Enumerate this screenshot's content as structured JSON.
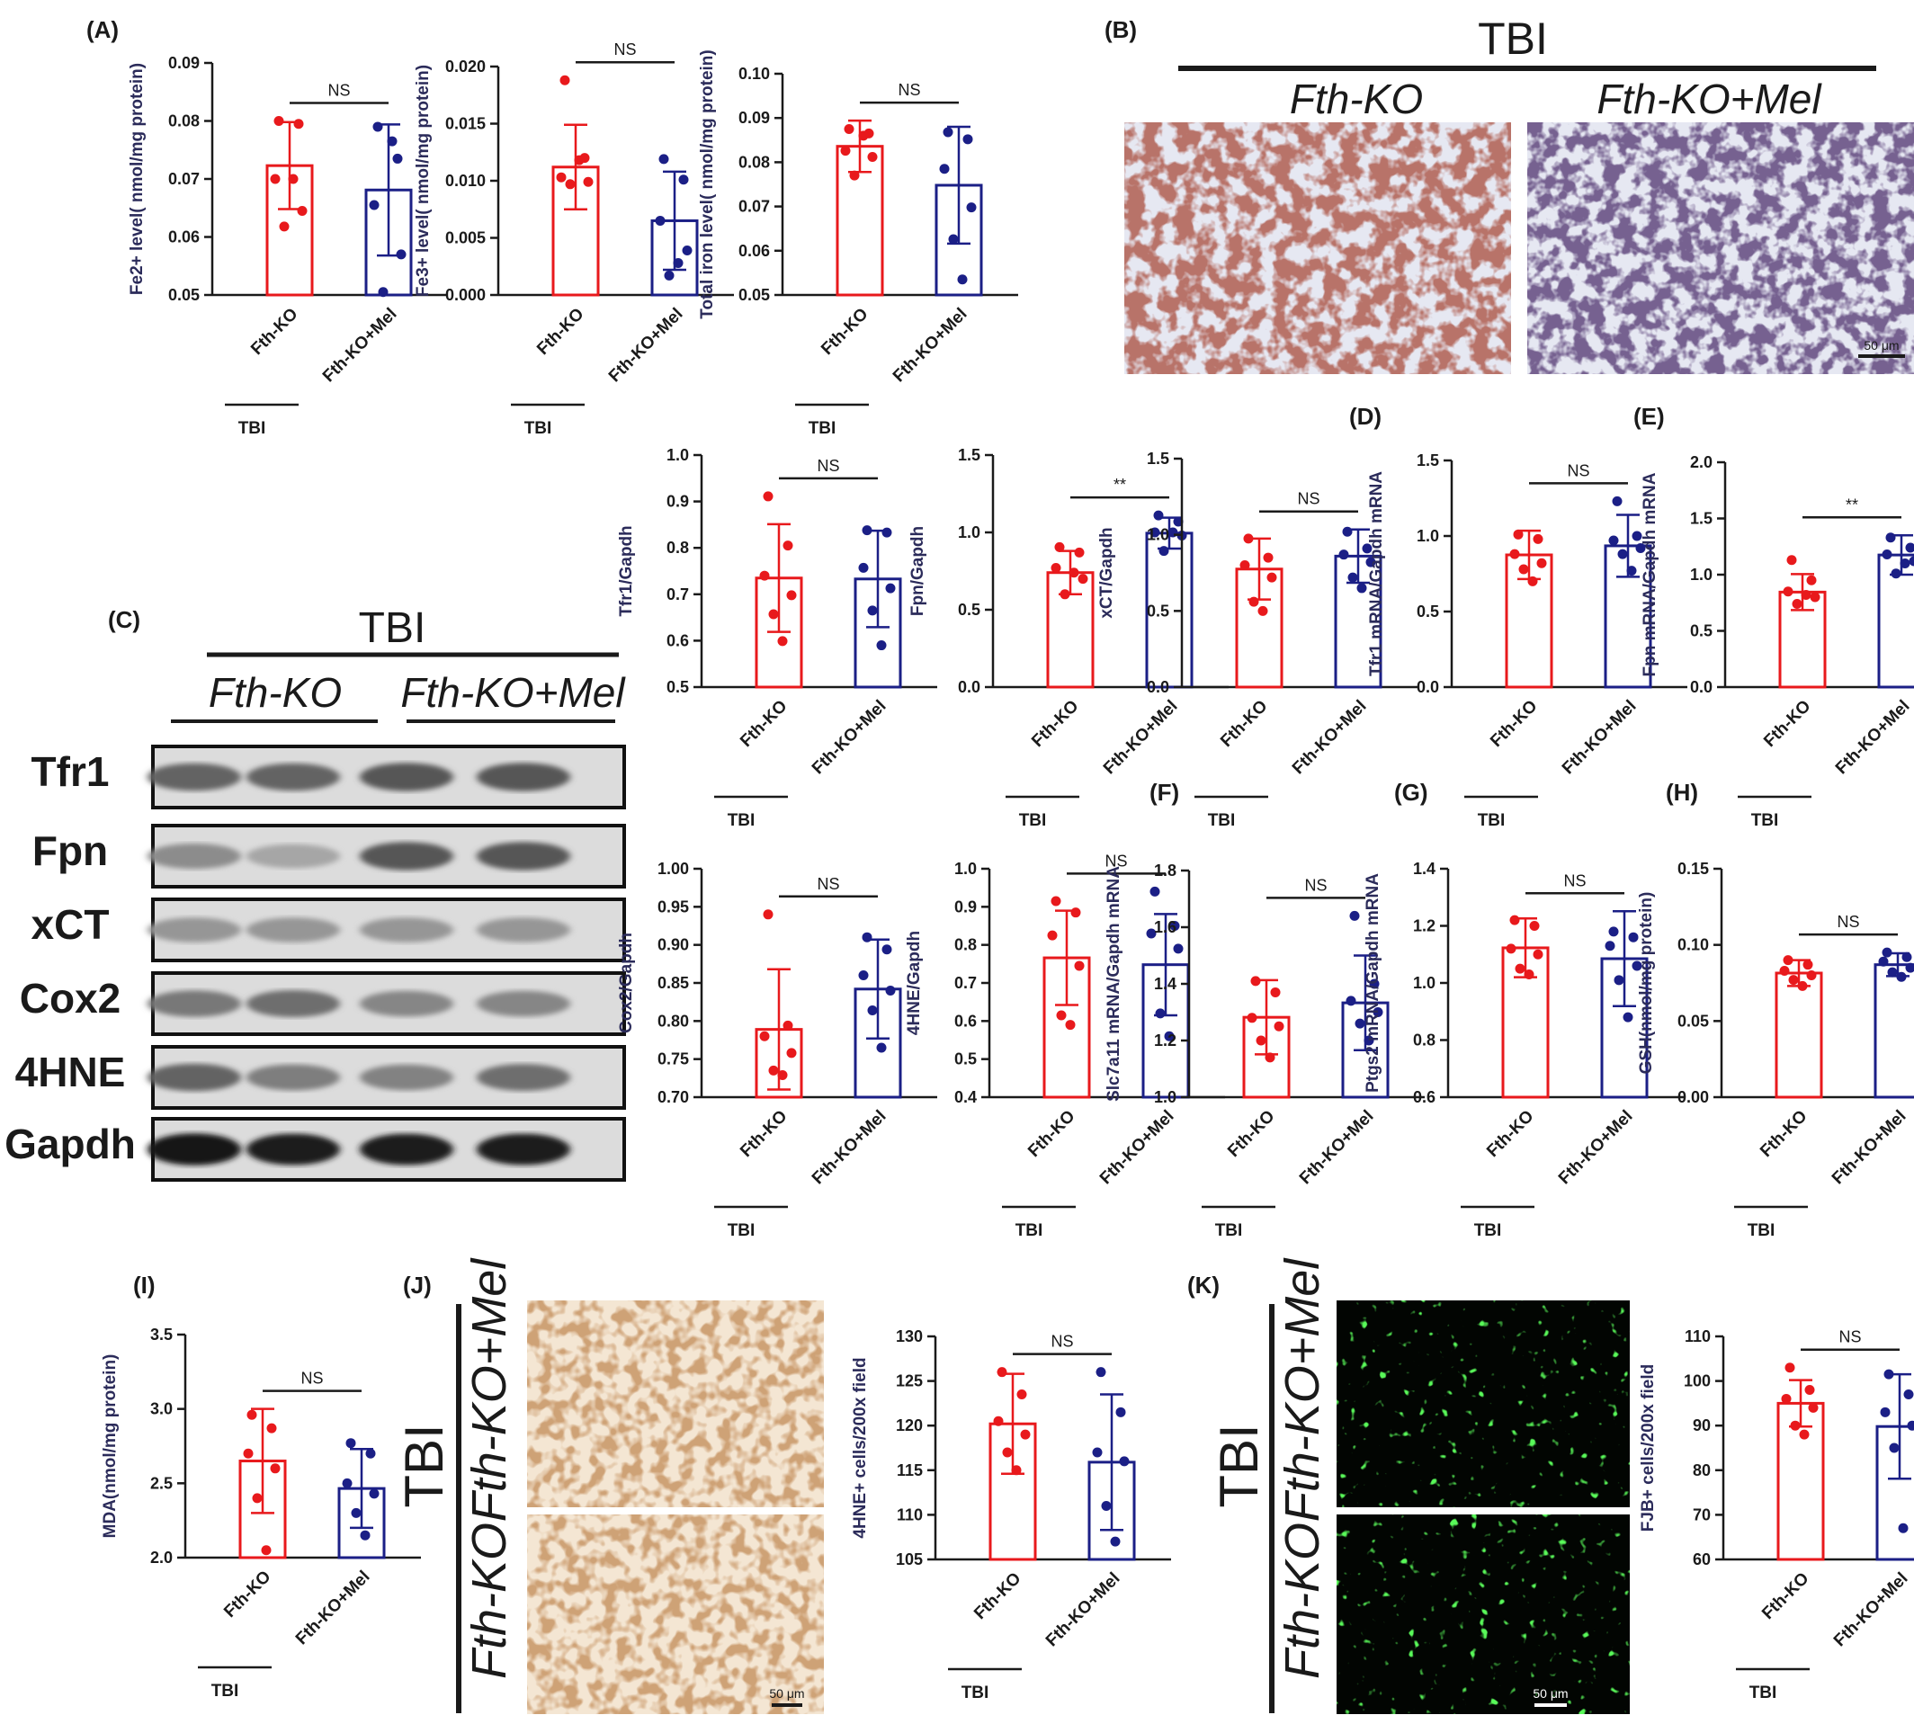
{
  "figure": {
    "group_labels": [
      "Fth-KO",
      "Fth-KO+Mel"
    ],
    "group_name": "TBI",
    "colors": {
      "ko": "#e8191c",
      "mel": "#1b1f86",
      "ink": "#1a1a1a"
    }
  },
  "chart_data": [
    {
      "id": "A1",
      "panel_label": "(A)",
      "type": "bar",
      "ylabel": "Fe2+ level( nmol/mg protein)",
      "ylim": [
        0.05,
        0.09
      ],
      "ticks": [
        "0.05",
        "0.06",
        "0.07",
        "0.08",
        "0.09"
      ],
      "categories": [
        "Fth-KO",
        "Fth-KO+Mel"
      ],
      "values": [
        0.0723,
        0.0681
      ],
      "errors": [
        0.0075,
        0.0113
      ],
      "points": [
        [
          0.08,
          0.0795,
          0.07,
          0.0645,
          0.0618,
          0.07
        ],
        [
          0.079,
          0.0735,
          0.0655,
          0.057,
          0.0505,
          0.0765
        ]
      ],
      "sig": "NS",
      "group": "TBI"
    },
    {
      "id": "A2",
      "panel_label": "",
      "type": "bar",
      "ylabel": "Fe3+ level( nmol/mg protein)",
      "ylim": [
        0,
        0.02
      ],
      "ticks": [
        "0.000",
        "0.005",
        "0.010",
        "0.015",
        "0.020"
      ],
      "categories": [
        "Fth-KO",
        "Fth-KO+Mel"
      ],
      "values": [
        0.0112,
        0.0065
      ],
      "errors": [
        0.0037,
        0.0043
      ],
      "points": [
        [
          0.0188,
          0.012,
          0.0103,
          0.0099,
          0.0097,
          0.0118
        ],
        [
          0.0119,
          0.0101,
          0.0065,
          0.0039,
          0.0017,
          0.0028
        ]
      ],
      "sig": "NS",
      "group": "TBI"
    },
    {
      "id": "A3",
      "panel_label": "",
      "type": "bar",
      "ylabel": "Total iron level( nmol/mg protein)",
      "ylim": [
        0.05,
        0.1
      ],
      "ticks": [
        "0.05",
        "0.06",
        "0.07",
        "0.08",
        "0.09",
        "0.10"
      ],
      "categories": [
        "Fth-KO",
        "Fth-KO+Mel"
      ],
      "values": [
        0.0836,
        0.0748
      ],
      "errors": [
        0.0058,
        0.0132
      ],
      "points": [
        [
          0.0875,
          0.0865,
          0.0826,
          0.0812,
          0.077,
          0.086
        ],
        [
          0.0868,
          0.0852,
          0.0785,
          0.0698,
          0.0626,
          0.0535
        ]
      ],
      "sig": "NS",
      "group": "TBI"
    },
    {
      "id": "C1",
      "panel_label": "",
      "type": "bar",
      "ylabel": "Tfr1/Gapdh",
      "ylim": [
        0.5,
        1.0
      ],
      "ticks": [
        "0.5",
        "0.6",
        "0.7",
        "0.8",
        "0.9",
        "1.0"
      ],
      "categories": [
        "Fth-KO",
        "Fth-KO+Mel"
      ],
      "values": [
        0.735,
        0.733
      ],
      "errors": [
        0.116,
        0.104
      ],
      "points": [
        [
          0.911,
          0.805,
          0.74,
          0.698,
          0.657,
          0.599
        ],
        [
          0.838,
          0.833,
          0.757,
          0.713,
          0.665,
          0.59
        ]
      ],
      "sig": "NS",
      "group": "TBI"
    },
    {
      "id": "C2",
      "panel_label": "",
      "type": "bar",
      "ylabel": "Fpn/Gapdh",
      "ylim": [
        0,
        1.5
      ],
      "ticks": [
        "0.0",
        "0.5",
        "1.0",
        "1.5"
      ],
      "categories": [
        "Fth-KO",
        "Fth-KO+Mel"
      ],
      "values": [
        0.74,
        0.995
      ],
      "errors": [
        0.14,
        0.1
      ],
      "points": [
        [
          0.905,
          0.87,
          0.77,
          0.7,
          0.6,
          0.74
        ],
        [
          1.11,
          1.07,
          1.0,
          0.98,
          0.88,
          1.0
        ]
      ],
      "sig": "**",
      "group": "TBI"
    },
    {
      "id": "C3",
      "panel_label": "",
      "type": "bar",
      "ylabel": "xCT/Gapdh",
      "ylim": [
        0,
        1.5
      ],
      "ticks": [
        "0.0",
        "0.5",
        "1.0",
        "1.5"
      ],
      "categories": [
        "Fth-KO",
        "Fth-KO+Mel"
      ],
      "values": [
        0.775,
        0.86
      ],
      "errors": [
        0.2,
        0.175
      ],
      "points": [
        [
          0.975,
          0.85,
          0.8,
          0.72,
          0.56,
          0.5
        ],
        [
          1.02,
          0.91,
          0.87,
          0.82,
          0.72,
          0.65
        ]
      ],
      "sig": "NS",
      "group": "TBI"
    },
    {
      "id": "D",
      "panel_label": "(D)",
      "type": "bar",
      "ylabel": "Tfr1 mRNA/Gapdh mRNA",
      "ylim": [
        0,
        1.5
      ],
      "ticks": [
        "0.0",
        "0.5",
        "1.0",
        "1.5"
      ],
      "categories": [
        "Fth-KO",
        "Fth-KO+Mel"
      ],
      "values": [
        0.875,
        0.935
      ],
      "errors": [
        0.16,
        0.205
      ],
      "points": [
        [
          1.01,
          0.98,
          0.88,
          0.82,
          0.78,
          0.7
        ],
        [
          1.23,
          1.0,
          0.97,
          0.92,
          0.88,
          0.77
        ]
      ],
      "sig": "NS",
      "group": "TBI"
    },
    {
      "id": "E",
      "panel_label": "(E)",
      "type": "bar",
      "ylabel": "Fpn mRNA/Gapdh mRNA",
      "ylim": [
        0,
        2.0
      ],
      "ticks": [
        "0.0",
        "0.5",
        "1.0",
        "1.5",
        "2.0"
      ],
      "categories": [
        "Fth-KO",
        "Fth-KO+Mel"
      ],
      "values": [
        0.845,
        1.175
      ],
      "errors": [
        0.16,
        0.175
      ],
      "points": [
        [
          1.13,
          0.95,
          0.85,
          0.8,
          0.74,
          0.82
        ],
        [
          1.33,
          1.24,
          1.18,
          1.12,
          1.01,
          1.1
        ]
      ],
      "sig": "**",
      "group": "TBI"
    },
    {
      "id": "C4",
      "panel_label": "",
      "type": "bar",
      "ylabel": "Cox2/Gapdh",
      "ylim": [
        0.7,
        1.0
      ],
      "ticks": [
        "0.70",
        "0.75",
        "0.80",
        "0.85",
        "0.90",
        "0.95",
        "1.00"
      ],
      "categories": [
        "Fth-KO",
        "Fth-KO+Mel"
      ],
      "values": [
        0.789,
        0.842
      ],
      "errors": [
        0.079,
        0.065
      ],
      "points": [
        [
          0.94,
          0.794,
          0.78,
          0.758,
          0.735,
          0.729
        ],
        [
          0.91,
          0.894,
          0.86,
          0.84,
          0.814,
          0.765
        ]
      ],
      "sig": "NS",
      "group": "TBI"
    },
    {
      "id": "C5",
      "panel_label": "",
      "type": "bar",
      "ylabel": "4HNE/Gapdh",
      "ylim": [
        0.4,
        1.0
      ],
      "ticks": [
        "0.4",
        "0.5",
        "0.6",
        "0.7",
        "0.8",
        "0.9",
        "1.0"
      ],
      "categories": [
        "Fth-KO",
        "Fth-KO+Mel"
      ],
      "values": [
        0.766,
        0.748
      ],
      "errors": [
        0.124,
        0.133
      ],
      "points": [
        [
          0.915,
          0.885,
          0.825,
          0.745,
          0.615,
          0.59
        ],
        [
          0.94,
          0.85,
          0.83,
          0.79,
          0.62,
          0.56
        ]
      ],
      "sig": "NS",
      "group": "TBI"
    },
    {
      "id": "F",
      "panel_label": "(F)",
      "type": "bar",
      "ylabel": "Slc7a11 mRNA/Gapdh mRNA",
      "ylim": [
        1.0,
        1.8
      ],
      "ticks": [
        "1.0",
        "1.2",
        "1.4",
        "1.6",
        "1.8"
      ],
      "categories": [
        "Fth-KO",
        "Fth-KO+Mel"
      ],
      "values": [
        1.282,
        1.333
      ],
      "errors": [
        0.131,
        0.167
      ],
      "points": [
        [
          1.41,
          1.37,
          1.28,
          1.25,
          1.2,
          1.14
        ],
        [
          1.64,
          1.4,
          1.34,
          1.3,
          1.26,
          1.2
        ]
      ],
      "sig": "NS",
      "group": "TBI"
    },
    {
      "id": "G",
      "panel_label": "(G)",
      "type": "bar",
      "ylabel": "Ptgs2 mRNA/Gapdh mRNA",
      "ylim": [
        0.6,
        1.4
      ],
      "ticks": [
        "0.6",
        "0.8",
        "1.0",
        "1.2",
        "1.4"
      ],
      "categories": [
        "Fth-KO",
        "Fth-KO+Mel"
      ],
      "values": [
        1.123,
        1.085
      ],
      "errors": [
        0.103,
        0.166
      ],
      "points": [
        [
          1.22,
          1.2,
          1.12,
          1.1,
          1.05,
          1.03
        ],
        [
          1.18,
          1.16,
          1.13,
          1.06,
          1.01,
          0.88
        ]
      ],
      "sig": "NS",
      "group": "TBI"
    },
    {
      "id": "H",
      "panel_label": "(H)",
      "type": "bar",
      "ylabel": "GSH(nmol/mg protein)",
      "ylim": [
        0,
        0.15
      ],
      "ticks": [
        "0.00",
        "0.05",
        "0.10",
        "0.15"
      ],
      "categories": [
        "Fth-KO",
        "Fth-KO+Mel"
      ],
      "values": [
        0.0815,
        0.087
      ],
      "errors": [
        0.0085,
        0.0075
      ],
      "points": [
        [
          0.09,
          0.087,
          0.083,
          0.08,
          0.077,
          0.073
        ],
        [
          0.095,
          0.092,
          0.089,
          0.085,
          0.082,
          0.079
        ]
      ],
      "sig": "NS",
      "group": "TBI"
    },
    {
      "id": "I",
      "panel_label": "(I)",
      "type": "bar",
      "ylabel": "MDA(nmol/mg protein)",
      "ylim": [
        2.0,
        3.5
      ],
      "ticks": [
        "2.0",
        "2.5",
        "3.0",
        "3.5"
      ],
      "categories": [
        "Fth-KO",
        "Fth-KO+Mel"
      ],
      "values": [
        2.65,
        2.465
      ],
      "errors": [
        0.35,
        0.265
      ],
      "points": [
        [
          2.96,
          2.87,
          2.7,
          2.6,
          2.4,
          2.05
        ],
        [
          2.77,
          2.7,
          2.5,
          2.43,
          2.3,
          2.15
        ]
      ],
      "sig": "NS",
      "group": "TBI"
    },
    {
      "id": "J",
      "panel_label": "",
      "type": "bar",
      "ylabel": "4HNE+ cells/200x field",
      "ylim": [
        105,
        130
      ],
      "ticks": [
        "105",
        "110",
        "115",
        "120",
        "125",
        "130"
      ],
      "categories": [
        "Fth-KO",
        "Fth-KO+Mel"
      ],
      "values": [
        120.2,
        115.9
      ],
      "errors": [
        5.6,
        7.6
      ],
      "points": [
        [
          126,
          123.5,
          120.5,
          119,
          117,
          115
        ],
        [
          126,
          121.5,
          117,
          116,
          111,
          107
        ]
      ],
      "sig": "NS",
      "group": "TBI"
    },
    {
      "id": "K",
      "panel_label": "",
      "type": "bar",
      "ylabel": "FJB+ cells/200x field",
      "ylim": [
        60,
        110
      ],
      "ticks": [
        "60",
        "70",
        "80",
        "90",
        "100",
        "110"
      ],
      "categories": [
        "Fth-KO",
        "Fth-KO+Mel"
      ],
      "values": [
        95,
        89.8
      ],
      "errors": [
        5.2,
        11.7
      ],
      "points": [
        [
          103,
          98,
          96,
          94,
          90,
          88
        ],
        [
          101.5,
          97,
          93,
          90,
          85,
          67
        ]
      ],
      "sig": "NS",
      "group": "TBI"
    }
  ],
  "micrographs": {
    "B": {
      "panel_label": "(B)",
      "title": "TBI",
      "columns": [
        "Fth-KO",
        "Fth-KO+Mel"
      ],
      "scale_bar": "50 μm"
    },
    "J": {
      "panel_label": "(J)",
      "title": "TBI",
      "rows": [
        "Fth-KO+Mel",
        "Fth-KO"
      ],
      "scale_bar": "50 μm"
    },
    "K": {
      "panel_label": "(K)",
      "title": "TBI",
      "rows": [
        "Fth-KO+Mel",
        "Fth-KO"
      ],
      "scale_bar": "50 μm"
    }
  },
  "western": {
    "panel_label": "(C)",
    "title": "TBI",
    "groups": [
      "Fth-KO",
      "Fth-KO+Mel"
    ],
    "proteins": [
      "Tfr1",
      "Fpn",
      "xCT",
      "Cox2",
      "4HNE",
      "Gapdh"
    ],
    "intensity": [
      [
        0.55,
        0.55,
        0.62,
        0.62
      ],
      [
        0.35,
        0.22,
        0.62,
        0.62
      ],
      [
        0.3,
        0.3,
        0.3,
        0.3
      ],
      [
        0.45,
        0.5,
        0.38,
        0.38
      ],
      [
        0.55,
        0.42,
        0.4,
        0.5
      ],
      [
        0.95,
        0.9,
        0.9,
        0.9
      ]
    ]
  }
}
